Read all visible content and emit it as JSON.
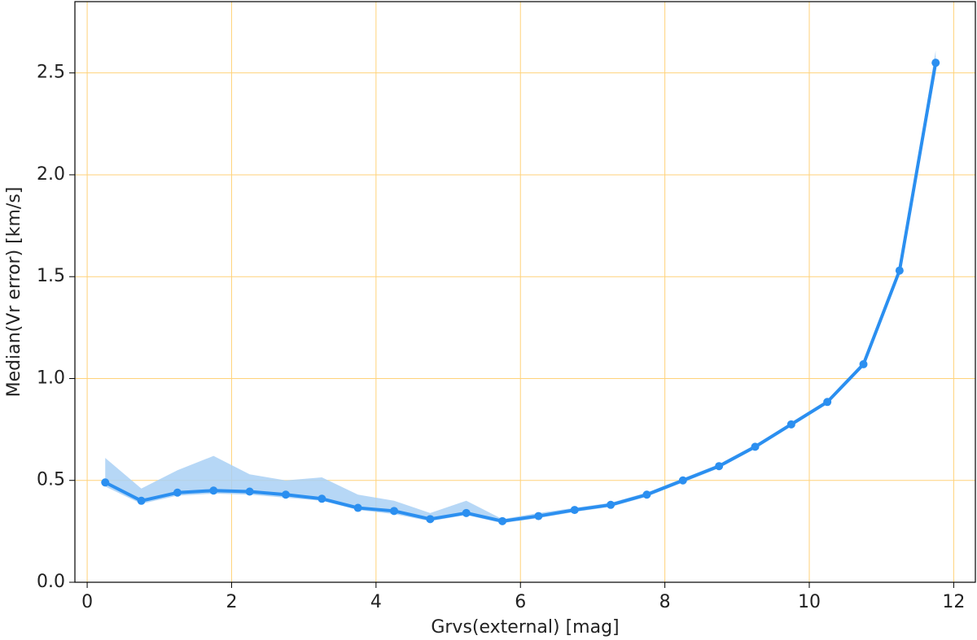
{
  "chart_data": {
    "type": "line",
    "xlabel": "Grvs(external) [mag]",
    "ylabel": "Median(Vr error) [km/s]",
    "x": [
      0.25,
      0.75,
      1.25,
      1.75,
      2.25,
      2.75,
      3.25,
      3.75,
      4.25,
      4.75,
      5.25,
      5.75,
      6.25,
      6.75,
      7.25,
      7.75,
      8.25,
      8.75,
      9.25,
      9.75,
      10.25,
      10.75,
      11.25,
      11.75
    ],
    "series": [
      {
        "color": "#2b8ff0",
        "band_color": "#a9d0f5",
        "values": [
          0.49,
          0.4,
          0.44,
          0.45,
          0.445,
          0.43,
          0.41,
          0.365,
          0.35,
          0.31,
          0.34,
          0.3,
          0.325,
          0.355,
          0.38,
          0.43,
          0.5,
          0.57,
          0.665,
          0.775,
          0.885,
          1.07,
          1.53,
          2.55
        ],
        "upper": [
          0.61,
          0.46,
          0.55,
          0.62,
          0.53,
          0.5,
          0.515,
          0.43,
          0.4,
          0.34,
          0.4,
          0.31,
          0.34,
          0.365,
          0.39,
          0.44,
          0.51,
          0.58,
          0.675,
          0.785,
          0.895,
          1.08,
          1.54,
          2.61
        ],
        "lower": [
          0.47,
          0.385,
          0.425,
          0.435,
          0.43,
          0.415,
          0.4,
          0.355,
          0.335,
          0.3,
          0.33,
          0.29,
          0.315,
          0.345,
          0.37,
          0.42,
          0.49,
          0.56,
          0.655,
          0.765,
          0.875,
          1.06,
          1.52,
          2.5
        ]
      }
    ],
    "xlim": [
      -0.17,
      12.3
    ],
    "ylim": [
      0,
      2.85
    ],
    "xticks": [
      0,
      2,
      4,
      6,
      8,
      10,
      12
    ],
    "yticks": [
      {
        "value": 0,
        "label": "0.0"
      },
      0.5,
      {
        "value": 1,
        "label": "1.0"
      },
      1.5,
      {
        "value": 2,
        "label": "2.0"
      },
      2.5
    ],
    "grid": true,
    "grid_color": "#ffd27a"
  }
}
